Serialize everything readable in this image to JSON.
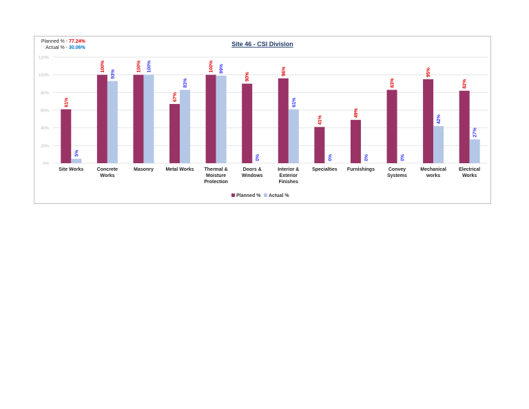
{
  "chart_data": {
    "type": "bar",
    "title": "Site 46 - CSI Division",
    "annotations": [
      {
        "label": "Planned % -",
        "value": "77.24%"
      },
      {
        "label": "Actual % -",
        "value": "30.06%"
      }
    ],
    "categories": [
      "Site Works",
      "Concrete Works",
      "Masonry",
      "Metal Works",
      "Thermal & Moisture Protection",
      "Doors & Windows",
      "Interior & Exterior Finishes",
      "Specialties",
      "Furnishings",
      "Convey Systems",
      "Mechanical works",
      "Electrical Works"
    ],
    "series": [
      {
        "name": "Planned %",
        "color": "#993366",
        "label_color": "#e00000",
        "values": [
          61,
          100,
          100,
          67,
          100,
          90,
          96,
          41,
          49,
          83,
          95,
          82
        ],
        "value_labels": [
          "61%",
          "100%",
          "100%",
          "67%",
          "100%",
          "90%",
          "96%",
          "41%",
          "49%",
          "83%",
          "95%",
          "82%"
        ]
      },
      {
        "name": "Actual %",
        "color": "#b4c7e7",
        "label_color": "#3333ff",
        "values": [
          5,
          93,
          100,
          83,
          99,
          0,
          61,
          0,
          0,
          0,
          42,
          27
        ],
        "value_labels": [
          "5%",
          "93%",
          "100%",
          "83%",
          "99%",
          "0%",
          "61%",
          "0%",
          "0%",
          "0%",
          "42%",
          "27%"
        ]
      }
    ],
    "ylim": [
      0,
      120
    ],
    "yticks": [
      {
        "value": 0,
        "label": "0%"
      },
      {
        "value": 20,
        "label": "20%"
      },
      {
        "value": 40,
        "label": "40%"
      },
      {
        "value": 60,
        "label": "60%"
      },
      {
        "value": 80,
        "label": "80%"
      },
      {
        "value": 100,
        "label": "100%"
      },
      {
        "value": 120,
        "label": "120%"
      }
    ],
    "grid": true,
    "legend": "bottom"
  }
}
